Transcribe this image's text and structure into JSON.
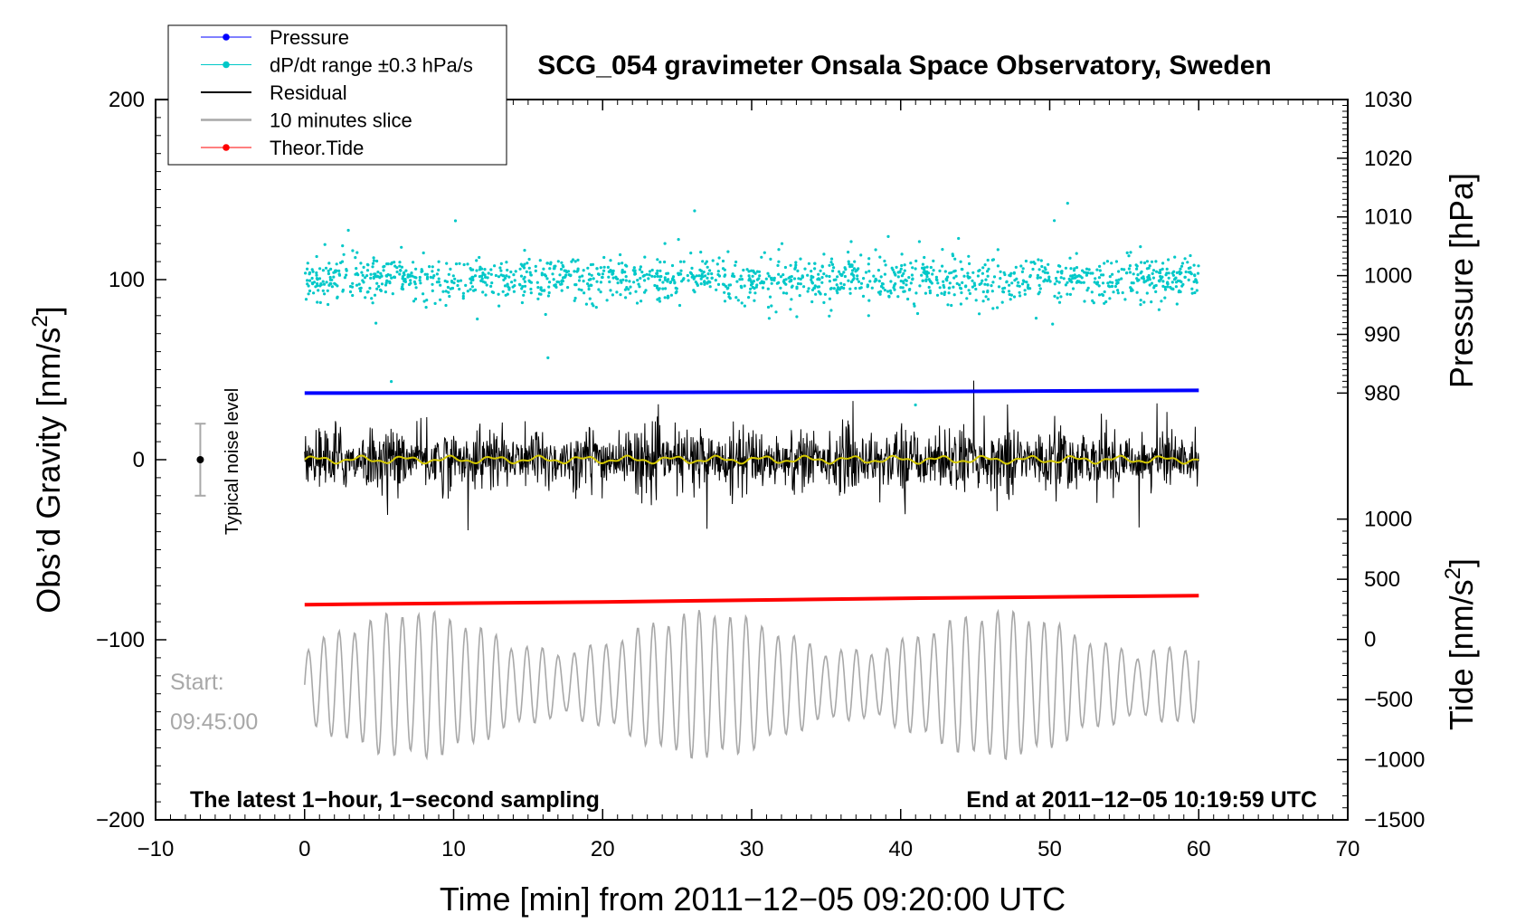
{
  "chart_data": {
    "type": "line",
    "title": "SCG_054 gravimeter Onsala Space Observatory, Sweden",
    "xlabel": "Time [min] from 2011−12−05 09:20:00 UTC",
    "ylabel_left": "Obs’d Gravity [nm/s²]",
    "ylabel_left_prefix": "Obs’d Gravity [nm/s",
    "ylabel_left_sup": "2",
    "ylabel_left_suffix": "]",
    "ylabel_right_pressure": "Pressure [hPa]",
    "ylabel_right_tide": "Tide [nm/s²]",
    "ylabel_right_tide_prefix": "Tide [nm/s",
    "ylabel_right_tide_sup": "2",
    "ylabel_right_tide_suffix": "]",
    "xlim": [
      -10,
      70
    ],
    "ylim": [
      -200,
      200
    ],
    "pressure_axis_range": [
      980,
      1030
    ],
    "tide_axis_range": [
      -1500,
      1000
    ],
    "x_ticks": [
      -10,
      0,
      10,
      20,
      30,
      40,
      50,
      60,
      70
    ],
    "x_tick_labels": [
      "−10",
      "0",
      "10",
      "20",
      "30",
      "40",
      "50",
      "60",
      "70"
    ],
    "y_ticks": [
      -200,
      -100,
      0,
      100,
      200
    ],
    "y_tick_labels": [
      "−200",
      "−100",
      "0",
      "100",
      "200"
    ],
    "pressure_ticks": [
      980,
      990,
      1000,
      1010,
      1020,
      1030
    ],
    "pressure_tick_labels": [
      "980",
      "990",
      "1000",
      "1010",
      "1020",
      "1030"
    ],
    "tide_ticks": [
      -1500,
      -1000,
      -500,
      0,
      500,
      1000
    ],
    "tide_tick_labels": [
      "−1500",
      "−1000",
      "−500",
      "0",
      "500",
      "1000"
    ],
    "series": [
      {
        "name": "Pressure",
        "color": "#0000ff",
        "note": "nearly flat, about 981 hPa",
        "gravity_level": [
          [
            0,
            37
          ],
          [
            20,
            37.3
          ],
          [
            40,
            37.8
          ],
          [
            60,
            38.5
          ]
        ]
      },
      {
        "name": "dP/dt range ±0.3 hPa/s",
        "color": "#00c8c8",
        "note": "scatter centred near 100 nm/s², spread about ±10, outliers to about ±50"
      },
      {
        "name": "Residual",
        "color": "#000000",
        "note": "noise centred at 0 nm/s², amplitude up to about ±55"
      },
      {
        "name": "10 minutes slice",
        "color": "#a8a8a8",
        "note": "oscillation centred near −125 nm/s², amplitude up to about ±40"
      },
      {
        "name": "Theor.Tide",
        "color": "#ff0000",
        "gravity_level": [
          [
            0,
            -80.5
          ],
          [
            20,
            -79
          ],
          [
            40,
            -77
          ],
          [
            60,
            -75.5
          ]
        ]
      }
    ],
    "smoothed_residual_color": "#d4c800",
    "noise_bar": {
      "label": "Typical noise level",
      "x": -7,
      "center": 0,
      "low": -20,
      "high": 20
    },
    "legend_position": "top-left",
    "annotations": {
      "bottom_left": "The latest 1−hour, 1−second sampling",
      "bottom_right": "End at 2011−12−05 10:19:59 UTC",
      "start_label": "Start:",
      "start_time": "09:45:00"
    }
  }
}
